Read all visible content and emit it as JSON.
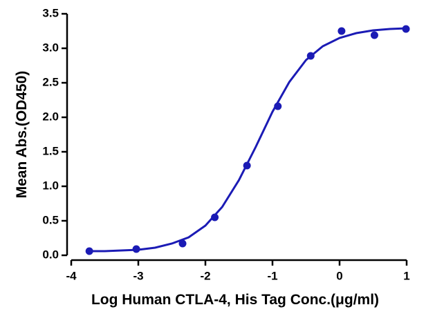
{
  "chart_data": {
    "type": "scatter",
    "xlabel": "Log Human CTLA-4, His Tag Conc.(μg/ml)",
    "ylabel": "Mean Abs.(OD450)",
    "xlim": [
      -4,
      1
    ],
    "ylim": [
      0,
      3.5
    ],
    "xticks": [
      -4,
      -3,
      -2,
      -1,
      0,
      1
    ],
    "yticks": [
      {
        "value": 0,
        "label": "0.0"
      },
      0.5,
      {
        "value": 1,
        "label": "1.0"
      },
      1.5,
      {
        "value": 2,
        "label": "2.0"
      },
      2.5,
      {
        "value": 3,
        "label": "3.0"
      },
      3.5
    ],
    "series": [
      {
        "kind": "points",
        "color": "#1b1bb5",
        "x": [
          -3.73,
          -3.03,
          -2.34,
          -1.86,
          -1.38,
          -0.92,
          -0.43,
          0.03,
          0.52,
          0.99
        ],
        "values": [
          0.06,
          0.09,
          0.17,
          0.55,
          1.3,
          2.16,
          2.89,
          3.25,
          3.19,
          3.28
        ]
      },
      {
        "kind": "line",
        "color": "#1b1bb5",
        "x": [
          -3.75,
          -3.5,
          -3.25,
          -3,
          -2.75,
          -2.5,
          -2.25,
          -2,
          -1.75,
          -1.5,
          -1.25,
          -1,
          -0.75,
          -0.5,
          -0.25,
          0,
          0.25,
          0.5,
          0.75,
          1
        ],
        "values": [
          0.06,
          0.06,
          0.07,
          0.08,
          0.11,
          0.17,
          0.26,
          0.43,
          0.7,
          1.09,
          1.57,
          2.08,
          2.51,
          2.83,
          3.03,
          3.15,
          3.22,
          3.26,
          3.28,
          3.29
        ]
      }
    ]
  }
}
